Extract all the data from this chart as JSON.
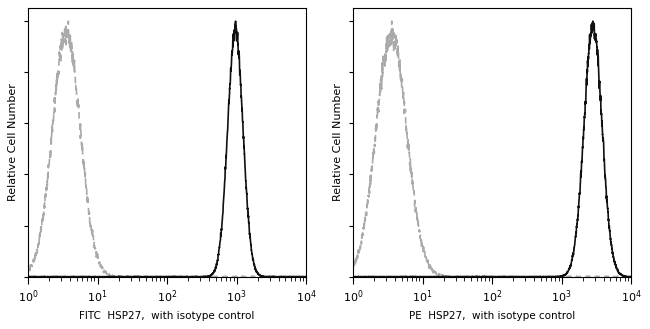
{
  "panel1_xlabel": "FITC  HSP27,  with isotype control",
  "panel2_xlabel": "PE  HSP27,  with isotype control",
  "ylabel": "Relative Cell Number",
  "xlim_log": [
    1,
    10000
  ],
  "ylim": [
    0,
    1.05
  ],
  "background_color": "#ffffff",
  "isotype_color": "#aaaaaa",
  "antibody_color": "#111111",
  "panel1_isotype_peak_log10": 0.55,
  "panel1_isotype_sigma": 0.2,
  "panel1_antibody_peak_log10": 2.98,
  "panel1_antibody_sigma": 0.11,
  "panel2_isotype_peak_log10": 0.55,
  "panel2_isotype_sigma": 0.22,
  "panel2_antibody_peak_log10": 3.45,
  "panel2_antibody_sigma": 0.13,
  "linewidth_iso": 1.2,
  "linewidth_ab": 1.2,
  "xlabel_fontsize": 7.5,
  "ylabel_fontsize": 8.0,
  "tick_fontsize": 8.0
}
